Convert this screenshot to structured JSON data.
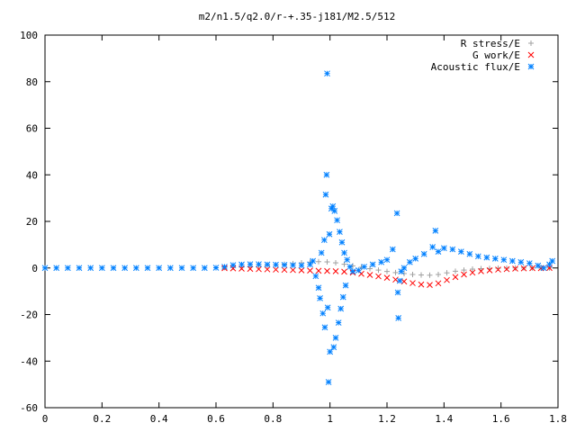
{
  "chart_data": {
    "type": "scatter",
    "title": "m2/n1.5/q2.0/r-+.35-j181/M2.5/512",
    "xlabel": "",
    "ylabel": "",
    "xlim": [
      0,
      1.8
    ],
    "ylim": [
      -60,
      100
    ],
    "xticks": [
      "0",
      "0.2",
      "0.4",
      "0.6",
      "0.8",
      "1",
      "1.2",
      "1.4",
      "1.6",
      "1.8"
    ],
    "yticks": [
      "-60",
      "-40",
      "-20",
      "0",
      "20",
      "40",
      "60",
      "80",
      "100"
    ],
    "legend_position": "top-right",
    "grid": false,
    "series": [
      {
        "name": "R stress/E",
        "marker": "plus",
        "color": "#a0a0a0",
        "points": [
          [
            0.63,
            0.2
          ],
          [
            0.66,
            0.3
          ],
          [
            0.69,
            0.4
          ],
          [
            0.72,
            0.6
          ],
          [
            0.75,
            0.8
          ],
          [
            0.78,
            1.0
          ],
          [
            0.81,
            1.3
          ],
          [
            0.84,
            1.6
          ],
          [
            0.87,
            1.9
          ],
          [
            0.9,
            2.2
          ],
          [
            0.93,
            2.5
          ],
          [
            0.96,
            2.7
          ],
          [
            0.99,
            2.6
          ],
          [
            1.02,
            2.2
          ],
          [
            1.05,
            1.6
          ],
          [
            1.08,
            0.9
          ],
          [
            1.11,
            0.3
          ],
          [
            1.14,
            -0.3
          ],
          [
            1.17,
            -0.9
          ],
          [
            1.2,
            -1.5
          ],
          [
            1.23,
            -2.0
          ],
          [
            1.26,
            -2.4
          ],
          [
            1.29,
            -2.8
          ],
          [
            1.32,
            -3.0
          ],
          [
            1.35,
            -3.1
          ],
          [
            1.38,
            -2.8
          ],
          [
            1.41,
            -2.1
          ],
          [
            1.44,
            -1.4
          ],
          [
            1.47,
            -0.9
          ],
          [
            1.5,
            -0.5
          ],
          [
            1.53,
            -0.3
          ],
          [
            1.56,
            -0.2
          ],
          [
            1.59,
            -0.1
          ],
          [
            1.62,
            -0.1
          ],
          [
            1.65,
            0.0
          ],
          [
            1.68,
            0.0
          ],
          [
            1.71,
            0.0
          ],
          [
            1.74,
            0.0
          ],
          [
            1.77,
            0.0
          ]
        ]
      },
      {
        "name": "G work/E",
        "marker": "cross",
        "color": "#ff0000",
        "points": [
          [
            0.63,
            -0.1
          ],
          [
            0.66,
            -0.2
          ],
          [
            0.69,
            -0.3
          ],
          [
            0.72,
            -0.4
          ],
          [
            0.75,
            -0.5
          ],
          [
            0.78,
            -0.6
          ],
          [
            0.81,
            -0.7
          ],
          [
            0.84,
            -0.8
          ],
          [
            0.87,
            -0.9
          ],
          [
            0.9,
            -1.0
          ],
          [
            0.93,
            -1.1
          ],
          [
            0.96,
            -1.2
          ],
          [
            0.99,
            -1.3
          ],
          [
            1.02,
            -1.4
          ],
          [
            1.05,
            -1.6
          ],
          [
            1.08,
            -2.0
          ],
          [
            1.11,
            -2.5
          ],
          [
            1.14,
            -3.0
          ],
          [
            1.17,
            -3.6
          ],
          [
            1.2,
            -4.2
          ],
          [
            1.23,
            -5.0
          ],
          [
            1.26,
            -5.8
          ],
          [
            1.29,
            -6.5
          ],
          [
            1.32,
            -7.1
          ],
          [
            1.35,
            -7.3
          ],
          [
            1.38,
            -6.6
          ],
          [
            1.41,
            -5.2
          ],
          [
            1.44,
            -3.9
          ],
          [
            1.47,
            -2.8
          ],
          [
            1.5,
            -2.0
          ],
          [
            1.53,
            -1.4
          ],
          [
            1.56,
            -1.0
          ],
          [
            1.59,
            -0.7
          ],
          [
            1.62,
            -0.5
          ],
          [
            1.65,
            -0.3
          ],
          [
            1.68,
            -0.2
          ],
          [
            1.71,
            -0.1
          ],
          [
            1.74,
            -0.1
          ],
          [
            1.77,
            0.0
          ]
        ]
      },
      {
        "name": "Acoustic flux/E",
        "marker": "star",
        "color": "#0080ff",
        "points": [
          [
            0.0,
            0.0
          ],
          [
            0.04,
            0.0
          ],
          [
            0.08,
            0.0
          ],
          [
            0.12,
            0.0
          ],
          [
            0.16,
            0.0
          ],
          [
            0.2,
            0.0
          ],
          [
            0.24,
            0.0
          ],
          [
            0.28,
            0.0
          ],
          [
            0.32,
            0.0
          ],
          [
            0.36,
            0.0
          ],
          [
            0.4,
            0.0
          ],
          [
            0.44,
            0.0
          ],
          [
            0.48,
            0.0
          ],
          [
            0.52,
            0.0
          ],
          [
            0.56,
            0.0
          ],
          [
            0.6,
            0.1
          ],
          [
            0.63,
            0.5
          ],
          [
            0.66,
            1.2
          ],
          [
            0.69,
            1.5
          ],
          [
            0.72,
            1.6
          ],
          [
            0.75,
            1.6
          ],
          [
            0.78,
            1.5
          ],
          [
            0.81,
            1.4
          ],
          [
            0.84,
            1.3
          ],
          [
            0.87,
            1.2
          ],
          [
            0.9,
            1.1
          ],
          [
            0.93,
            1.5
          ],
          [
            0.94,
            3.0
          ],
          [
            0.95,
            -3.5
          ],
          [
            0.96,
            -8.5
          ],
          [
            0.965,
            -13
          ],
          [
            0.97,
            6.5
          ],
          [
            0.975,
            -19.5
          ],
          [
            0.98,
            12
          ],
          [
            0.982,
            -25.5
          ],
          [
            0.985,
            31.5
          ],
          [
            0.988,
            40
          ],
          [
            0.99,
            83.5
          ],
          [
            0.992,
            -17
          ],
          [
            0.995,
            -49
          ],
          [
            0.998,
            14.5
          ],
          [
            1.0,
            -36
          ],
          [
            1.005,
            25.5
          ],
          [
            1.01,
            26.5
          ],
          [
            1.013,
            -34
          ],
          [
            1.016,
            24.5
          ],
          [
            1.02,
            -30
          ],
          [
            1.025,
            20.5
          ],
          [
            1.03,
            -23.5
          ],
          [
            1.034,
            15.5
          ],
          [
            1.038,
            -17.5
          ],
          [
            1.042,
            11
          ],
          [
            1.046,
            -12.5
          ],
          [
            1.05,
            6.5
          ],
          [
            1.055,
            -7.5
          ],
          [
            1.06,
            3.5
          ],
          [
            1.07,
            0.5
          ],
          [
            1.08,
            -1.5
          ],
          [
            1.1,
            -1.0
          ],
          [
            1.12,
            0.5
          ],
          [
            1.15,
            1.5
          ],
          [
            1.18,
            2.5
          ],
          [
            1.2,
            3.5
          ],
          [
            1.22,
            8.0
          ],
          [
            1.235,
            23.5
          ],
          [
            1.238,
            -10.5
          ],
          [
            1.24,
            -21.5
          ],
          [
            1.245,
            -5.5
          ],
          [
            1.25,
            -1.5
          ],
          [
            1.26,
            0.0
          ],
          [
            1.28,
            2.5
          ],
          [
            1.3,
            4.0
          ],
          [
            1.33,
            6.0
          ],
          [
            1.36,
            9.0
          ],
          [
            1.37,
            16.0
          ],
          [
            1.38,
            7.0
          ],
          [
            1.4,
            8.5
          ],
          [
            1.43,
            8.0
          ],
          [
            1.46,
            7.0
          ],
          [
            1.49,
            6.0
          ],
          [
            1.52,
            5.0
          ],
          [
            1.55,
            4.5
          ],
          [
            1.58,
            4.0
          ],
          [
            1.61,
            3.5
          ],
          [
            1.64,
            3.0
          ],
          [
            1.67,
            2.5
          ],
          [
            1.7,
            2.0
          ],
          [
            1.73,
            1.0
          ],
          [
            1.75,
            0.0
          ],
          [
            1.77,
            1.5
          ],
          [
            1.78,
            3.0
          ]
        ]
      }
    ]
  }
}
